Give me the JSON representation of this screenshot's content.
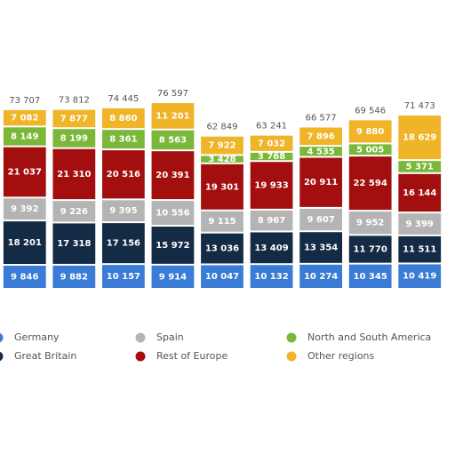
{
  "chart_data": {
    "type": "stacked-bar",
    "categories": [
      null,
      null,
      null,
      null,
      null,
      null,
      null,
      null,
      null
    ],
    "series": [
      {
        "name": "Germany",
        "color": "#3a7bd5",
        "values": [
          9846,
          9882,
          10157,
          9914,
          10047,
          10132,
          10274,
          10345,
          10419
        ],
        "value_labels": [
          "9 846",
          "9 882",
          "10 157",
          "9 914",
          "10 047",
          "10 132",
          "10 274",
          "10 345",
          "10 419"
        ]
      },
      {
        "name": "Great Britain",
        "color": "#142b45",
        "values": [
          18201,
          17318,
          17156,
          15972,
          13036,
          13409,
          13354,
          11770,
          11511
        ],
        "value_labels": [
          "18 201",
          "17 318",
          "17 156",
          "15 972",
          "13 036",
          "13 409",
          "13 354",
          "11 770",
          "11 511"
        ]
      },
      {
        "name": "Spain",
        "color": "#b4b4b4",
        "values": [
          9392,
          9226,
          9395,
          10556,
          9115,
          8967,
          9607,
          9952,
          9399
        ],
        "value_labels": [
          "9 392",
          "9 226",
          "9 395",
          "10 556",
          "9 115",
          "8 967",
          "9 607",
          "9 952",
          "9 399"
        ]
      },
      {
        "name": "Rest of Europe",
        "color": "#a30f0f",
        "values": [
          21037,
          21310,
          20516,
          20391,
          19301,
          19933,
          20911,
          22594,
          16144
        ],
        "value_labels": [
          "21 037",
          "21 310",
          "20 516",
          "20 391",
          "19 301",
          "19 933",
          "20 911",
          "22 594",
          "16 144"
        ]
      },
      {
        "name": "North and South America",
        "color": "#7bb83a",
        "values": [
          8149,
          8199,
          8361,
          8563,
          3428,
          3768,
          4535,
          5005,
          5371
        ],
        "value_labels": [
          "8 149",
          "8 199",
          "8 361",
          "8 563",
          "3 428",
          "3 768",
          "4 535",
          "5 005",
          "5 371"
        ]
      },
      {
        "name": "Other regions",
        "color": "#f0b429",
        "values": [
          7082,
          7877,
          8860,
          11201,
          7922,
          7032,
          7896,
          9880,
          18629
        ],
        "value_labels": [
          "7 082",
          "7 877",
          "8 860",
          "11 201",
          "7 922",
          "7 032",
          "7 896",
          "9 880",
          "18 629"
        ]
      }
    ],
    "total_labels": [
      "73 707",
      "73 812",
      "74 445",
      "76 597",
      "62 849",
      "63 241",
      "66 577",
      "69 546",
      "71 473"
    ],
    "legend": "bottom"
  }
}
